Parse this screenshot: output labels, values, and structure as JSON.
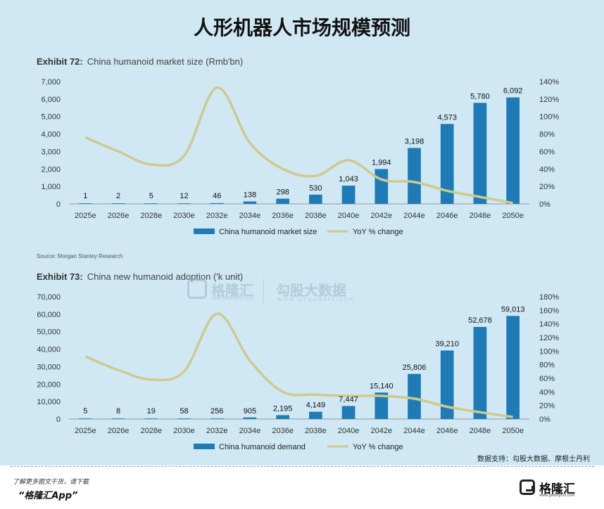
{
  "title": "人形机器人市场规模预测",
  "charts": {
    "top": {
      "exhibit_label": "Exhibit 72:",
      "exhibit_title": "China humanoid market size (Rmb'bn)",
      "source": "Source: Morgan Stanley Research"
    },
    "bottom": {
      "exhibit_label": "Exhibit 73:",
      "exhibit_title": "China new humanoid adoption ('k unit)"
    }
  },
  "watermark": {
    "brand1": "格隆汇",
    "brand1_sub": "www.gelonghui.com",
    "brand2": "勾股大数据",
    "brand2_sub": "www.gogudata.com"
  },
  "credits": "数据支持：勾股大数据、摩根士丹利",
  "footer": {
    "line1": "了解更多图文干货，请下载",
    "line2": "“格隆汇App”",
    "brand": "格隆汇",
    "brand_sub": "www.gelonghui.com"
  },
  "chart_data": [
    {
      "type": "bar",
      "categories": [
        "2025e",
        "2026e",
        "2028e",
        "2030e",
        "2032e",
        "2034e",
        "2036e",
        "2038e",
        "2040e",
        "2042e",
        "2044e",
        "2046e",
        "2048e",
        "2050e"
      ],
      "series": [
        {
          "name": "China humanoid market size",
          "type": "bar",
          "axis": "left",
          "color": "#1f7bb5",
          "values": [
            1,
            2,
            5,
            12,
            46,
            138,
            298,
            530,
            1043,
            1994,
            3198,
            4573,
            5780,
            6092
          ],
          "labels": [
            "1",
            "2",
            "5",
            "12",
            "46",
            "138",
            "298",
            "530",
            "1,043",
            "1,994",
            "3,198",
            "4,573",
            "5,780",
            "6,092"
          ]
        },
        {
          "name": "YoY % change",
          "type": "line",
          "axis": "right",
          "color": "#cfca8c",
          "values": [
            76,
            60,
            45,
            55,
            133,
            70,
            40,
            32,
            50,
            28,
            25,
            15,
            8,
            1
          ]
        }
      ],
      "yticks_left": [
        "0",
        "1,000",
        "2,000",
        "3,000",
        "4,000",
        "5,000",
        "6,000",
        "7,000"
      ],
      "yticks_right": [
        "0%",
        "20%",
        "40%",
        "60%",
        "80%",
        "100%",
        "120%",
        "140%"
      ],
      "ylim_left": [
        0,
        7000
      ],
      "ylim_right": [
        0,
        140
      ]
    },
    {
      "type": "bar",
      "categories": [
        "2025e",
        "2026e",
        "2028e",
        "2030e",
        "2032e",
        "2034e",
        "2036e",
        "2038e",
        "2040e",
        "2042e",
        "2044e",
        "2046e",
        "2048e",
        "2050e"
      ],
      "series": [
        {
          "name": "China humanoid demand",
          "type": "bar",
          "axis": "left",
          "color": "#1f7bb5",
          "values": [
            5,
            8,
            19,
            58,
            256,
            905,
            2195,
            4149,
            7447,
            15140,
            25806,
            39210,
            52678,
            59013
          ],
          "labels": [
            "5",
            "8",
            "19",
            "58",
            "256",
            "905",
            "2,195",
            "4,149",
            "7,447",
            "15,140",
            "25,806",
            "39,210",
            "52,678",
            "59,013"
          ]
        },
        {
          "name": "YoY % change",
          "type": "line",
          "axis": "right",
          "color": "#cfca8c",
          "values": [
            92,
            72,
            58,
            70,
            155,
            86,
            40,
            36,
            34,
            34,
            30,
            18,
            10,
            3
          ]
        }
      ],
      "yticks_left": [
        "0",
        "10,000",
        "20,000",
        "30,000",
        "40,000",
        "50,000",
        "60,000",
        "70,000"
      ],
      "yticks_right": [
        "0%",
        "20%",
        "40%",
        "60%",
        "80%",
        "100%",
        "120%",
        "140%",
        "160%",
        "180%"
      ],
      "ylim_left": [
        0,
        70000
      ],
      "ylim_right": [
        0,
        180
      ]
    }
  ]
}
